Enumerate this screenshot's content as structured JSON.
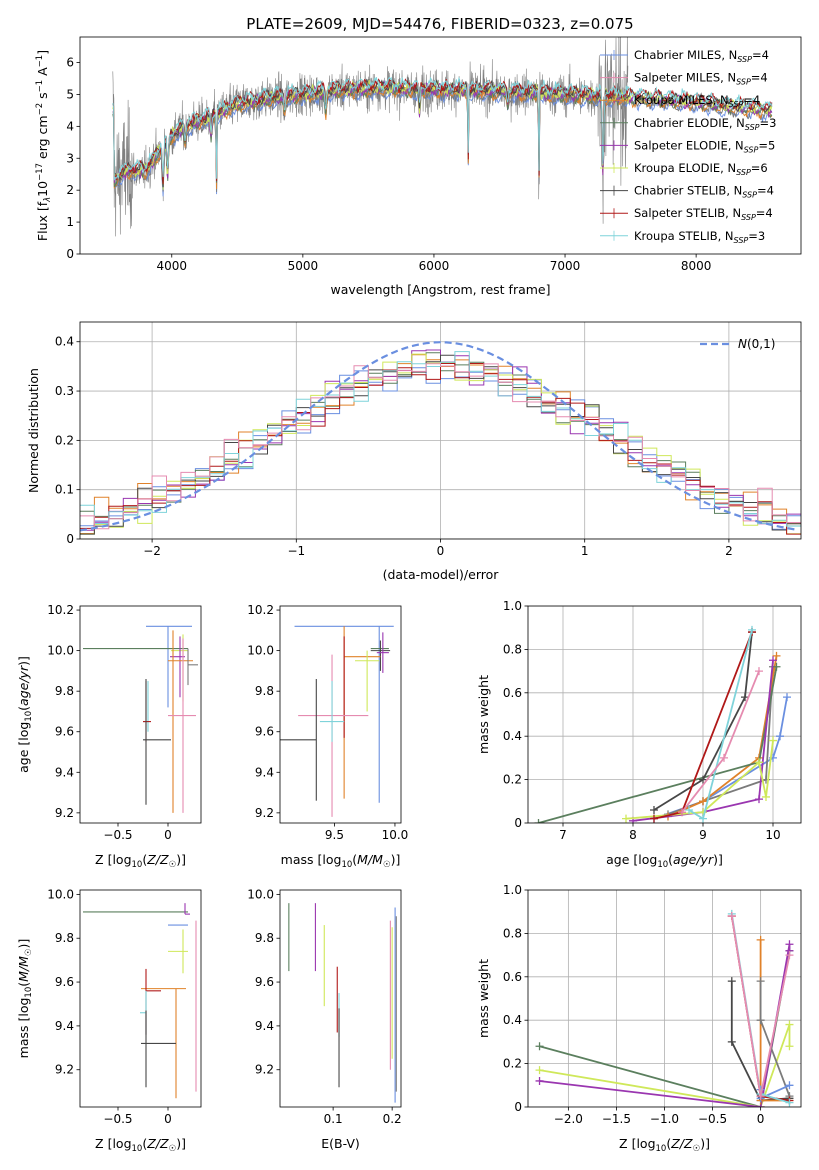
{
  "figure": {
    "title": "PLATE=2609, MJD=54476, FIBERID=0323, z=0.075"
  },
  "colors": {
    "palette": [
      "#6a8fe0",
      "#7b7b7b",
      "#e0822a",
      "#5b7f5e",
      "#9a36b0",
      "#cfe85a",
      "#474747",
      "#b01818",
      "#7fd3da",
      "#e58bb0"
    ],
    "data": "#808080"
  },
  "chart_data": [
    {
      "id": "spectrum",
      "type": "line",
      "xlabel": "wavelength [Angstrom, rest frame]",
      "ylabel": "Flux [f",
      "ylabel_sub": "λ",
      "ylabel_rest": "10",
      "ylabel_units": "erg cm",
      "xlim": [
        3300,
        8800
      ],
      "ylim": [
        0,
        6.8
      ],
      "xticks": [
        4000,
        5000,
        6000,
        7000,
        8000
      ],
      "yticks": [
        0,
        1,
        2,
        3,
        4,
        5,
        6
      ],
      "grid": false,
      "legend_position": "upper-right",
      "data_range": [
        3550,
        7480
      ],
      "model_range": [
        3550,
        8580
      ],
      "series": [
        {
          "name": "Chabrier MILES, N",
          "nssp": "=4"
        },
        {
          "name": "Salpeter MILES, N",
          "nssp": "=4"
        },
        {
          "name": "Kroupa MILES, N",
          "nssp": "=4"
        },
        {
          "name": "Chabrier ELODIE, N",
          "nssp": "=3"
        },
        {
          "name": "Salpeter ELODIE, N",
          "nssp": "=5"
        },
        {
          "name": "Kroupa ELODIE, N",
          "nssp": "=6"
        },
        {
          "name": "Chabrier STELIB, N",
          "nssp": "=4"
        },
        {
          "name": "Salpeter STELIB, N",
          "nssp": "=4"
        },
        {
          "name": "Kroupa STELIB, N",
          "nssp": "=3"
        }
      ],
      "continuum": [
        [
          3560,
          2.3
        ],
        [
          3650,
          2.6
        ],
        [
          3700,
          2.6
        ],
        [
          3800,
          2.6
        ],
        [
          3900,
          3.2
        ],
        [
          4000,
          3.7
        ],
        [
          4100,
          4.0
        ],
        [
          4300,
          4.3
        ],
        [
          4500,
          4.7
        ],
        [
          4700,
          4.85
        ],
        [
          5000,
          5.0
        ],
        [
          5300,
          5.15
        ],
        [
          5600,
          5.2
        ],
        [
          6000,
          5.15
        ],
        [
          6500,
          5.1
        ],
        [
          7000,
          5.0
        ],
        [
          7500,
          4.9
        ],
        [
          8000,
          4.75
        ],
        [
          8300,
          4.6
        ],
        [
          8580,
          4.5
        ]
      ]
    },
    {
      "id": "residuals",
      "type": "step",
      "xlabel": "(data-model)/error",
      "ylabel": "Normed distribution",
      "xlim": [
        -2.5,
        2.5
      ],
      "ylim": [
        0,
        0.44
      ],
      "xticks": [
        -2,
        -1,
        0,
        1,
        2
      ],
      "yticks": [
        0.0,
        0.1,
        0.2,
        0.3,
        0.4
      ],
      "grid": true,
      "legend_position": "upper-right",
      "reference_label": "N(0,1)",
      "bin_width": 0.1,
      "n_histograms": 9
    },
    {
      "id": "age-vs-z",
      "type": "errorbar",
      "xlabel": "Z [log10(Z/Z☉)]",
      "ylabel": "age  [log10(age/yr)]",
      "xlim": [
        -0.88,
        0.33
      ],
      "ylim": [
        9.15,
        10.22
      ],
      "xticks": [
        -0.5,
        0.0
      ],
      "yticks": [
        9.2,
        9.4,
        9.6,
        9.8,
        10.0,
        10.2
      ],
      "points": [
        {
          "x": 0.0,
          "xerr": [
            0.22,
            0.24
          ],
          "y": 10.12,
          "yerr": [
            0.4,
            0.0
          ],
          "c": 0
        },
        {
          "x": -0.85,
          "xerr": [
            0.0,
            1.05
          ],
          "y": 10.01,
          "yerr": [
            0.0,
            0.0
          ],
          "c": 3
        },
        {
          "x": 0.15,
          "xerr": [
            0.12,
            0.05
          ],
          "y": 10.0,
          "yerr": [
            0.25,
            0.08
          ],
          "c": 5
        },
        {
          "x": 0.12,
          "xerr": [
            0.1,
            0.05
          ],
          "y": 9.97,
          "yerr": [
            0.2,
            0.1
          ],
          "c": 4
        },
        {
          "x": 0.05,
          "xerr": [
            0.05,
            0.2
          ],
          "y": 9.95,
          "yerr": [
            0.75,
            0.15
          ],
          "c": 2
        },
        {
          "x": 0.2,
          "xerr": [
            0.0,
            0.1
          ],
          "y": 9.93,
          "yerr": [
            0.1,
            0.08
          ],
          "c": 1
        },
        {
          "x": 0.15,
          "xerr": [
            0.15,
            0.13
          ],
          "y": 9.68,
          "yerr": [
            0.48,
            0.38
          ],
          "c": 9
        },
        {
          "x": -0.2,
          "xerr": [
            0.05,
            0.0
          ],
          "y": 9.65,
          "yerr": [
            0.05,
            0.2
          ],
          "c": 8
        },
        {
          "x": -0.22,
          "xerr": [
            0.03,
            0.05
          ],
          "y": 9.65,
          "yerr": [
            0.1,
            0.2
          ],
          "c": 7
        },
        {
          "x": -0.22,
          "xerr": [
            0.03,
            0.25
          ],
          "y": 9.56,
          "yerr": [
            0.32,
            0.3
          ],
          "c": 6
        }
      ]
    },
    {
      "id": "age-vs-mass",
      "type": "errorbar",
      "xlabel": "mass [log10(M/M☉)]",
      "ylabel": "",
      "xlim": [
        9.05,
        10.05
      ],
      "ylim": [
        9.15,
        10.22
      ],
      "xticks": [
        9.5,
        10.0
      ],
      "yticks": [
        9.2,
        9.4,
        9.6,
        9.8,
        10.0,
        10.2
      ],
      "points": [
        {
          "x": 9.87,
          "xerr": [
            0.7,
            0.12
          ],
          "y": 10.12,
          "yerr": [
            0.87,
            0.0
          ],
          "c": 0
        },
        {
          "x": 9.95,
          "xerr": [
            0.15,
            0.0
          ],
          "y": 10.01,
          "yerr": [
            0.0,
            0.0
          ],
          "c": 3
        },
        {
          "x": 9.88,
          "xerr": [
            0.08,
            0.08
          ],
          "y": 10.0,
          "yerr": [
            0.1,
            0.05
          ],
          "c": 6
        },
        {
          "x": 9.9,
          "xerr": [
            0.05,
            0.05
          ],
          "y": 9.99,
          "yerr": [
            0.1,
            0.1
          ],
          "c": 4
        },
        {
          "x": 9.58,
          "xerr": [
            0.0,
            0.3
          ],
          "y": 9.97,
          "yerr": [
            0.7,
            0.15
          ],
          "c": 2
        },
        {
          "x": 9.77,
          "xerr": [
            0.1,
            0.1
          ],
          "y": 9.95,
          "yerr": [
            0.25,
            0.05
          ],
          "c": 5
        },
        {
          "x": 9.58,
          "xerr": [
            0.0,
            0.0
          ],
          "y": 9.97,
          "yerr": [
            0.4,
            0.1
          ],
          "c": 7
        },
        {
          "x": 9.48,
          "xerr": [
            0.28,
            0.3
          ],
          "y": 9.68,
          "yerr": [
            0.5,
            0.3
          ],
          "c": 9
        },
        {
          "x": 9.48,
          "xerr": [
            0.1,
            0.1
          ],
          "y": 9.65,
          "yerr": [
            0.1,
            0.2
          ],
          "c": 8
        },
        {
          "x": 9.35,
          "xerr": [
            0.3,
            0.0
          ],
          "y": 9.56,
          "yerr": [
            0.3,
            0.3
          ],
          "c": 6
        }
      ]
    },
    {
      "id": "weight-vs-age",
      "type": "line",
      "xlabel": "age  [log10(age/yr)]",
      "ylabel": "mass weight",
      "xlim": [
        6.5,
        10.4
      ],
      "ylim": [
        0,
        1
      ],
      "xticks": [
        7,
        8,
        9,
        10
      ],
      "yticks": [
        0.0,
        0.2,
        0.4,
        0.6,
        0.8,
        1.0
      ],
      "grid": true,
      "series": [
        {
          "c": 0,
          "x": [
            8.3,
            9.0,
            10.0,
            10.1,
            10.2
          ],
          "y": [
            0.02,
            0.1,
            0.3,
            0.4,
            0.58
          ]
        },
        {
          "c": 1,
          "x": [
            8.5,
            9.0,
            9.9,
            10.0
          ],
          "y": [
            0.04,
            0.1,
            0.2,
            0.72
          ]
        },
        {
          "c": 2,
          "x": [
            8.5,
            9.0,
            9.8,
            10.05
          ],
          "y": [
            0.03,
            0.1,
            0.3,
            0.77
          ]
        },
        {
          "c": 3,
          "x": [
            6.65,
            9.8,
            10.05
          ],
          "y": [
            0.0,
            0.28,
            0.72
          ]
        },
        {
          "c": 4,
          "x": [
            8.0,
            9.0,
            9.8,
            10.0
          ],
          "y": [
            0.01,
            0.05,
            0.11,
            0.75
          ]
        },
        {
          "c": 5,
          "x": [
            7.9,
            9.0,
            9.8,
            9.9,
            10.0
          ],
          "y": [
            0.02,
            0.05,
            0.28,
            0.12,
            0.38
          ]
        },
        {
          "c": 6,
          "x": [
            8.3,
            9.0,
            9.6,
            9.7
          ],
          "y": [
            0.06,
            0.2,
            0.58,
            0.88
          ]
        },
        {
          "c": 7,
          "x": [
            8.3,
            8.7,
            9.7
          ],
          "y": [
            0.02,
            0.05,
            0.88
          ]
        },
        {
          "c": 8,
          "x": [
            8.8,
            9.0,
            9.7
          ],
          "y": [
            0.06,
            0.02,
            0.89
          ]
        },
        {
          "c": 9,
          "x": [
            8.7,
            9.3,
            9.8
          ],
          "y": [
            0.05,
            0.3,
            0.7
          ]
        }
      ]
    },
    {
      "id": "mass-vs-z",
      "type": "errorbar",
      "xlabel": "Z [log10(Z/Z☉)]",
      "ylabel": "mass [log10(M/M☉)]",
      "xlim": [
        -0.88,
        0.33
      ],
      "ylim": [
        9.03,
        10.02
      ],
      "xticks": [
        -0.5,
        0.0
      ],
      "yticks": [
        9.2,
        9.4,
        9.6,
        9.8,
        10.0
      ],
      "points": [
        {
          "x": -0.85,
          "xerr": [
            0.0,
            1.05
          ],
          "y": 9.92,
          "yerr": [
            0.0,
            0.0
          ],
          "c": 3
        },
        {
          "x": 0.17,
          "xerr": [
            0.0,
            0.05
          ],
          "y": 9.91,
          "yerr": [
            0.0,
            0.05
          ],
          "c": 4
        },
        {
          "x": 0.0,
          "xerr": [
            0.0,
            0.2
          ],
          "y": 9.86,
          "yerr": [
            0.0,
            0.0
          ],
          "c": 0
        },
        {
          "x": 0.15,
          "xerr": [
            0.15,
            0.05
          ],
          "y": 9.74,
          "yerr": [
            0.1,
            0.1
          ],
          "c": 5
        },
        {
          "x": 0.08,
          "xerr": [
            0.35,
            0.1
          ],
          "y": 9.57,
          "yerr": [
            0.5,
            0.0
          ],
          "c": 2
        },
        {
          "x": -0.22,
          "xerr": [
            0.0,
            0.15
          ],
          "y": 9.56,
          "yerr": [
            0.2,
            0.1
          ],
          "c": 7
        },
        {
          "x": -0.22,
          "xerr": [
            0.06,
            0.0
          ],
          "y": 9.46,
          "yerr": [
            0.1,
            0.1
          ],
          "c": 8
        },
        {
          "x": -0.22,
          "xerr": [
            0.05,
            0.3
          ],
          "y": 9.32,
          "yerr": [
            0.2,
            0.15
          ],
          "c": 6
        },
        {
          "x": 0.28,
          "xerr": [
            0.0,
            0.0
          ],
          "y": 9.6,
          "yerr": [
            0.5,
            0.28
          ],
          "c": 9
        }
      ]
    },
    {
      "id": "mass-vs-ebv",
      "type": "errorbar",
      "xlabel": "E(B-V)",
      "ylabel": "",
      "xlim": [
        0.01,
        0.215
      ],
      "ylim": [
        9.03,
        10.02
      ],
      "xticks": [
        0.1,
        0.2
      ],
      "yticks": [
        9.2,
        9.4,
        9.6,
        9.8,
        10.0
      ],
      "points": [
        {
          "x": 0.025,
          "y": 9.8,
          "yerr": [
            0.15,
            0.16
          ],
          "c": 3
        },
        {
          "x": 0.07,
          "y": 9.8,
          "yerr": [
            0.15,
            0.16
          ],
          "c": 4
        },
        {
          "x": 0.085,
          "y": 9.67,
          "yerr": [
            0.18,
            0.19
          ],
          "c": 5
        },
        {
          "x": 0.107,
          "y": 9.52,
          "yerr": [
            0.15,
            0.15
          ],
          "c": 7
        },
        {
          "x": 0.11,
          "y": 9.45,
          "yerr": [
            0.1,
            0.1
          ],
          "c": 8
        },
        {
          "x": 0.11,
          "y": 9.3,
          "yerr": [
            0.18,
            0.18
          ],
          "c": 6
        },
        {
          "x": 0.197,
          "y": 9.5,
          "yerr": [
            0.3,
            0.38
          ],
          "c": 9
        },
        {
          "x": 0.2,
          "y": 9.55,
          "yerr": [
            0.3,
            0.3
          ],
          "c": 5
        },
        {
          "x": 0.205,
          "y": 9.5,
          "yerr": [
            0.45,
            0.44
          ],
          "c": 0
        },
        {
          "x": 0.207,
          "y": 9.5,
          "yerr": [
            0.4,
            0.4
          ],
          "c": 1
        }
      ]
    },
    {
      "id": "weight-vs-z",
      "type": "line",
      "xlabel": "Z [log10(Z/Z☉)]",
      "ylabel": "mass weight",
      "xlim": [
        -2.42,
        0.42
      ],
      "ylim": [
        0,
        1
      ],
      "xticks": [
        -2.0,
        -1.5,
        -1.0,
        -0.5,
        0.0
      ],
      "yticks": [
        0.0,
        0.2,
        0.4,
        0.6,
        0.8,
        1.0
      ],
      "grid": true,
      "series": [
        {
          "c": 3,
          "x": [
            -2.3,
            0.0,
            0.3
          ],
          "y": [
            0.28,
            0.0,
            0.72
          ]
        },
        {
          "c": 5,
          "x": [
            -2.3,
            0.0,
            0.3,
            0.3
          ],
          "y": [
            0.17,
            0.0,
            0.38,
            0.28
          ]
        },
        {
          "c": 4,
          "x": [
            -2.3,
            0.0,
            0.3,
            0.3
          ],
          "y": [
            0.12,
            0.0,
            0.75,
            0.72
          ]
        },
        {
          "c": 6,
          "x": [
            -0.3,
            -0.3,
            0.0,
            0.3
          ],
          "y": [
            0.58,
            0.3,
            0.03,
            0.04
          ]
        },
        {
          "c": 2,
          "x": [
            0.0,
            0.0,
            0.3
          ],
          "y": [
            0.77,
            0.03,
            0.03
          ]
        },
        {
          "c": 1,
          "x": [
            0.0,
            0.0,
            0.3
          ],
          "y": [
            0.58,
            0.4,
            0.05
          ]
        },
        {
          "c": 0,
          "x": [
            0.0,
            0.0,
            0.3
          ],
          "y": [
            0.08,
            0.04,
            0.1
          ]
        },
        {
          "c": 7,
          "x": [
            -0.3,
            0.0,
            0.3
          ],
          "y": [
            0.88,
            0.05,
            0.03
          ]
        },
        {
          "c": 8,
          "x": [
            -0.3,
            0.0,
            0.3
          ],
          "y": [
            0.89,
            0.06,
            0.02
          ]
        },
        {
          "c": 9,
          "x": [
            -0.3,
            0.0,
            0.3
          ],
          "y": [
            0.88,
            0.05,
            0.7
          ]
        }
      ]
    }
  ]
}
